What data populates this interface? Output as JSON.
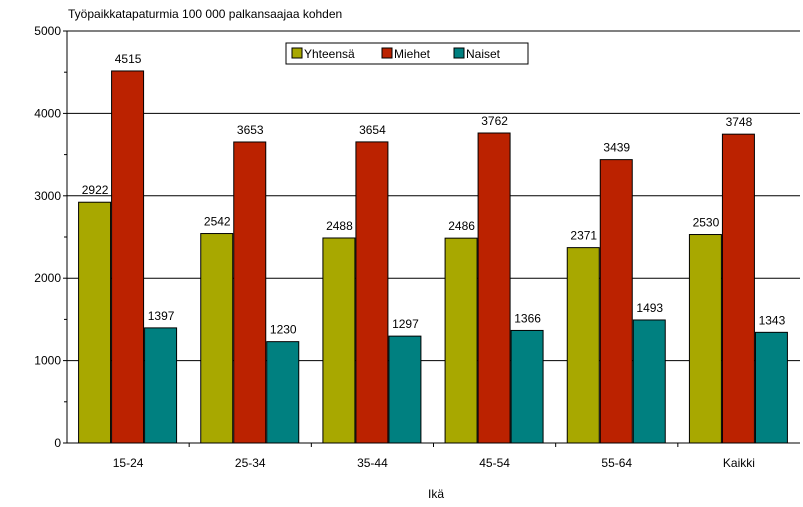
{
  "chart_data": {
    "type": "bar",
    "title": "Työpaikkatapaturmia 100 000 palkansaajaa kohden",
    "xlabel": "Ikä",
    "ylabel": "",
    "categories": [
      "15-24",
      "25-34",
      "35-44",
      "45-54",
      "55-64",
      "Kaikki"
    ],
    "series": [
      {
        "name": "Yhteensä",
        "color": "#a8a800",
        "values": [
          2922,
          2542,
          2488,
          2486,
          2371,
          2530
        ]
      },
      {
        "name": "Miehet",
        "color": "#bb2200",
        "values": [
          4515,
          3653,
          3654,
          3762,
          3439,
          3748
        ]
      },
      {
        "name": "Naiset",
        "color": "#008080",
        "values": [
          1397,
          1230,
          1297,
          1366,
          1493,
          1343
        ]
      }
    ],
    "ylim": [
      0,
      5000
    ],
    "yticks": [
      0,
      1000,
      2000,
      3000,
      4000,
      5000
    ],
    "grid": true,
    "legend_position": "top-center"
  }
}
